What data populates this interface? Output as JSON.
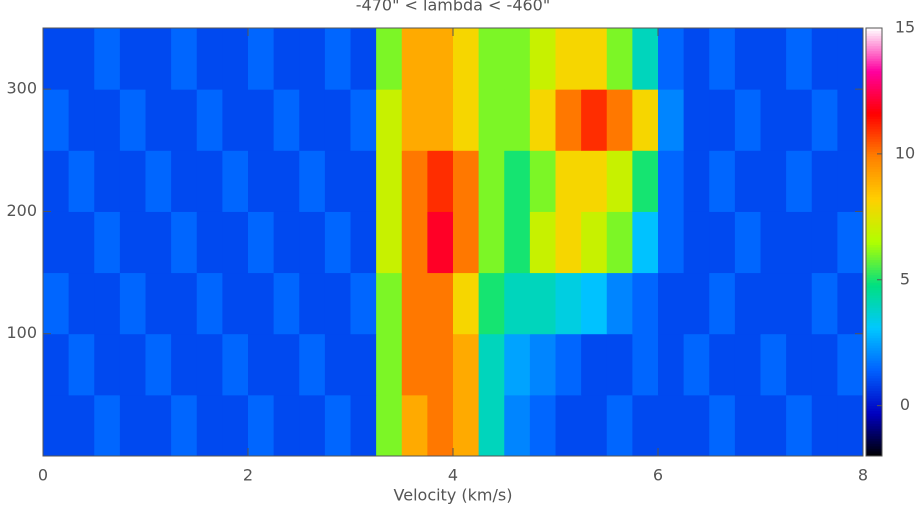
{
  "chart_data": {
    "type": "heatmap",
    "title": "-470\" < lambda < -460\"",
    "x_label": "Velocity (km/s)",
    "xlim": [
      0,
      8
    ],
    "xticks": [
      0,
      2,
      4,
      6,
      8
    ],
    "ylim": [
      0,
      350
    ],
    "yticks": [
      100,
      200,
      300
    ],
    "xbins": [
      0,
      0.25,
      0.5,
      0.75,
      1,
      1.25,
      1.5,
      1.75,
      2,
      2.25,
      2.5,
      2.75,
      3,
      3.25,
      3.5,
      3.75,
      4,
      4.25,
      4.5,
      4.75,
      5,
      5.25,
      5.5,
      5.75,
      6,
      6.25,
      6.5,
      6.75,
      7,
      7.25,
      7.5,
      7.75,
      8
    ],
    "ybins": [
      0,
      50,
      100,
      150,
      200,
      250,
      300,
      350
    ],
    "z": [
      [
        1,
        1,
        1.5,
        1,
        1,
        1.5,
        1,
        1,
        1.5,
        1,
        1,
        1.5,
        1,
        6,
        9,
        10,
        9,
        4,
        2,
        1.5,
        1,
        1,
        1.5,
        1,
        1,
        1,
        1.5,
        1,
        1,
        1.5,
        1,
        1
      ],
      [
        1,
        1.5,
        1,
        1,
        1.5,
        1,
        1,
        1.5,
        1,
        1,
        1.5,
        1,
        1,
        6,
        10,
        10,
        9,
        4,
        2.5,
        2,
        1.5,
        1,
        1,
        1.5,
        1,
        1.5,
        1,
        1,
        1.5,
        1,
        1,
        1.5
      ],
      [
        1.5,
        1,
        1,
        1.5,
        1,
        1,
        1.5,
        1,
        1,
        1.5,
        1,
        1,
        1.5,
        6,
        10,
        10,
        8,
        5,
        4,
        4,
        3.5,
        3,
        2,
        1.5,
        1,
        1,
        1.5,
        1,
        1,
        1,
        1.5,
        1
      ],
      [
        1,
        1,
        1.5,
        1,
        1,
        1.5,
        1,
        1,
        1.5,
        1,
        1,
        1.5,
        1,
        7,
        10,
        12,
        10,
        6,
        5,
        7,
        8,
        7,
        6,
        3,
        1.5,
        1,
        1,
        1.5,
        1,
        1,
        1,
        1.5
      ],
      [
        1,
        1.5,
        1,
        1,
        1.5,
        1,
        1,
        1.5,
        1,
        1,
        1.5,
        1,
        1,
        7,
        10,
        11,
        10,
        6,
        5,
        6,
        8,
        8,
        7,
        5,
        1.5,
        1,
        1.5,
        1,
        1,
        1.5,
        1,
        1
      ],
      [
        1.5,
        1,
        1,
        1.5,
        1,
        1,
        1.5,
        1,
        1,
        1.5,
        1,
        1,
        1.5,
        7,
        9,
        9,
        8,
        6,
        6,
        8,
        10,
        11,
        10,
        8,
        2,
        1,
        1,
        1.5,
        1,
        1,
        1.5,
        1
      ],
      [
        1,
        1,
        1.5,
        1,
        1,
        1.5,
        1,
        1,
        1.5,
        1,
        1,
        1.5,
        1,
        6,
        9,
        9,
        8,
        6,
        6,
        7,
        8,
        8,
        6,
        4,
        1.5,
        1,
        1.5,
        1,
        1,
        1.5,
        1,
        1
      ]
    ],
    "clim": [
      -2,
      15
    ],
    "cticks": [
      0,
      5,
      10,
      15
    ],
    "colormap": [
      "#000000",
      "#0000c0",
      "#0060ff",
      "#00c8ff",
      "#00e080",
      "#b0ff00",
      "#ffd000",
      "#ff8000",
      "#ff0000",
      "#ff00a0",
      "#ffffff"
    ]
  }
}
